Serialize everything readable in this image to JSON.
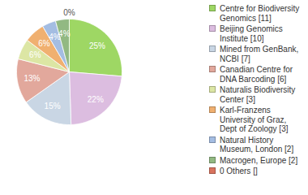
{
  "chart_data": {
    "type": "pie",
    "categories": [
      "Centre for Biodiversity Genomics [11]",
      "Beijing Genomics Institute [10]",
      "Mined from GenBank, NCBI [7]",
      "Canadian Centre for DNA Barcoding [6]",
      "Naturalis Biodiversity Center [3]",
      "Karl-Franzens University of Graz, Dept of Zoology [3]",
      "Natural History Museum, London [2]",
      "Macrogen, Europe [2]",
      "0 Others []"
    ],
    "values": [
      25,
      22,
      15,
      13,
      6,
      6,
      4,
      4,
      0
    ],
    "value_labels": [
      "25%",
      "22%",
      "15%",
      "13%",
      "6%",
      "6%",
      "4%",
      "4%",
      "0%"
    ],
    "colors": [
      "#9ed764",
      "#dcbde0",
      "#c9d6e4",
      "#e2a89c",
      "#dce6a4",
      "#f0b070",
      "#a4bde2",
      "#92b982",
      "#d9735e"
    ],
    "data_labels": true,
    "legend": "right"
  }
}
